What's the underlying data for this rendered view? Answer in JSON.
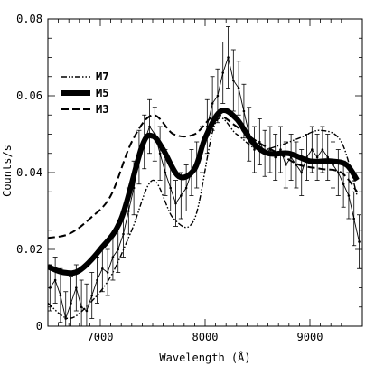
{
  "chart_data": {
    "type": "line",
    "xlabel": "Wavelength (Å)",
    "ylabel": "Counts/s",
    "xlim": [
      6500,
      9500
    ],
    "ylim": [
      0,
      0.08
    ],
    "xticks": [
      7000,
      8000,
      9000
    ],
    "yticks": [
      0,
      0.02,
      0.04,
      0.06,
      0.08
    ],
    "ytick_labels": [
      "0",
      "0.02",
      "0.04",
      "0.06",
      "0.08"
    ],
    "legend_position": "top-left",
    "grid": false,
    "series": [
      {
        "name": "M7",
        "style": "dash-dot",
        "x": [
          6500,
          6700,
          6900,
          7100,
          7300,
          7500,
          7700,
          7900,
          8100,
          8300,
          8500,
          8700,
          8900,
          9100,
          9300,
          9450
        ],
        "y": [
          0.006,
          0.002,
          0.006,
          0.013,
          0.025,
          0.038,
          0.028,
          0.028,
          0.053,
          0.05,
          0.046,
          0.047,
          0.049,
          0.051,
          0.048,
          0.034
        ]
      },
      {
        "name": "M5",
        "style": "thick-solid",
        "x": [
          6500,
          6650,
          6800,
          7000,
          7200,
          7400,
          7500,
          7600,
          7750,
          7900,
          8000,
          8150,
          8300,
          8450,
          8600,
          8800,
          9000,
          9200,
          9350,
          9450
        ],
        "y": [
          0.0155,
          0.014,
          0.0145,
          0.02,
          0.028,
          0.047,
          0.0495,
          0.046,
          0.039,
          0.041,
          0.049,
          0.056,
          0.054,
          0.048,
          0.045,
          0.045,
          0.043,
          0.043,
          0.042,
          0.038
        ]
      },
      {
        "name": "M3",
        "style": "dashed",
        "x": [
          6500,
          6700,
          6900,
          7100,
          7300,
          7500,
          7700,
          7900,
          8100,
          8300,
          8500,
          8700,
          8900,
          9100,
          9300,
          9450
        ],
        "y": [
          0.023,
          0.024,
          0.028,
          0.034,
          0.048,
          0.055,
          0.05,
          0.05,
          0.055,
          0.052,
          0.048,
          0.045,
          0.042,
          0.041,
          0.04,
          0.035
        ]
      },
      {
        "name": "",
        "style": "data-with-errorbars",
        "x": [
          6520,
          6570,
          6620,
          6670,
          6720,
          6770,
          6820,
          6870,
          6920,
          6970,
          7020,
          7070,
          7120,
          7170,
          7220,
          7270,
          7320,
          7370,
          7420,
          7470,
          7520,
          7570,
          7620,
          7670,
          7720,
          7770,
          7820,
          7870,
          7920,
          7970,
          8020,
          8070,
          8120,
          8170,
          8220,
          8270,
          8320,
          8370,
          8420,
          8470,
          8520,
          8570,
          8620,
          8670,
          8720,
          8770,
          8820,
          8870,
          8920,
          8970,
          9020,
          9070,
          9120,
          9170,
          9220,
          9270,
          9320,
          9370,
          9420,
          9470
        ],
        "y": [
          0.01,
          0.012,
          0.008,
          0.002,
          0.006,
          0.01,
          0.005,
          0.004,
          0.008,
          0.012,
          0.015,
          0.014,
          0.018,
          0.02,
          0.024,
          0.03,
          0.036,
          0.044,
          0.048,
          0.052,
          0.05,
          0.045,
          0.04,
          0.036,
          0.032,
          0.034,
          0.036,
          0.04,
          0.042,
          0.046,
          0.052,
          0.058,
          0.06,
          0.066,
          0.07,
          0.064,
          0.062,
          0.056,
          0.05,
          0.046,
          0.048,
          0.045,
          0.046,
          0.044,
          0.046,
          0.042,
          0.044,
          0.042,
          0.04,
          0.044,
          0.046,
          0.044,
          0.046,
          0.044,
          0.042,
          0.04,
          0.037,
          0.034,
          0.028,
          0.022
        ],
        "yerr": [
          0.006,
          0.006,
          0.007,
          0.007,
          0.007,
          0.006,
          0.007,
          0.007,
          0.006,
          0.006,
          0.006,
          0.006,
          0.006,
          0.006,
          0.006,
          0.006,
          0.007,
          0.007,
          0.007,
          0.007,
          0.007,
          0.007,
          0.006,
          0.006,
          0.006,
          0.006,
          0.006,
          0.006,
          0.006,
          0.006,
          0.007,
          0.007,
          0.007,
          0.008,
          0.008,
          0.008,
          0.007,
          0.007,
          0.007,
          0.006,
          0.006,
          0.006,
          0.006,
          0.006,
          0.006,
          0.006,
          0.006,
          0.006,
          0.006,
          0.006,
          0.006,
          0.006,
          0.006,
          0.006,
          0.006,
          0.006,
          0.006,
          0.006,
          0.007,
          0.007
        ]
      }
    ]
  }
}
